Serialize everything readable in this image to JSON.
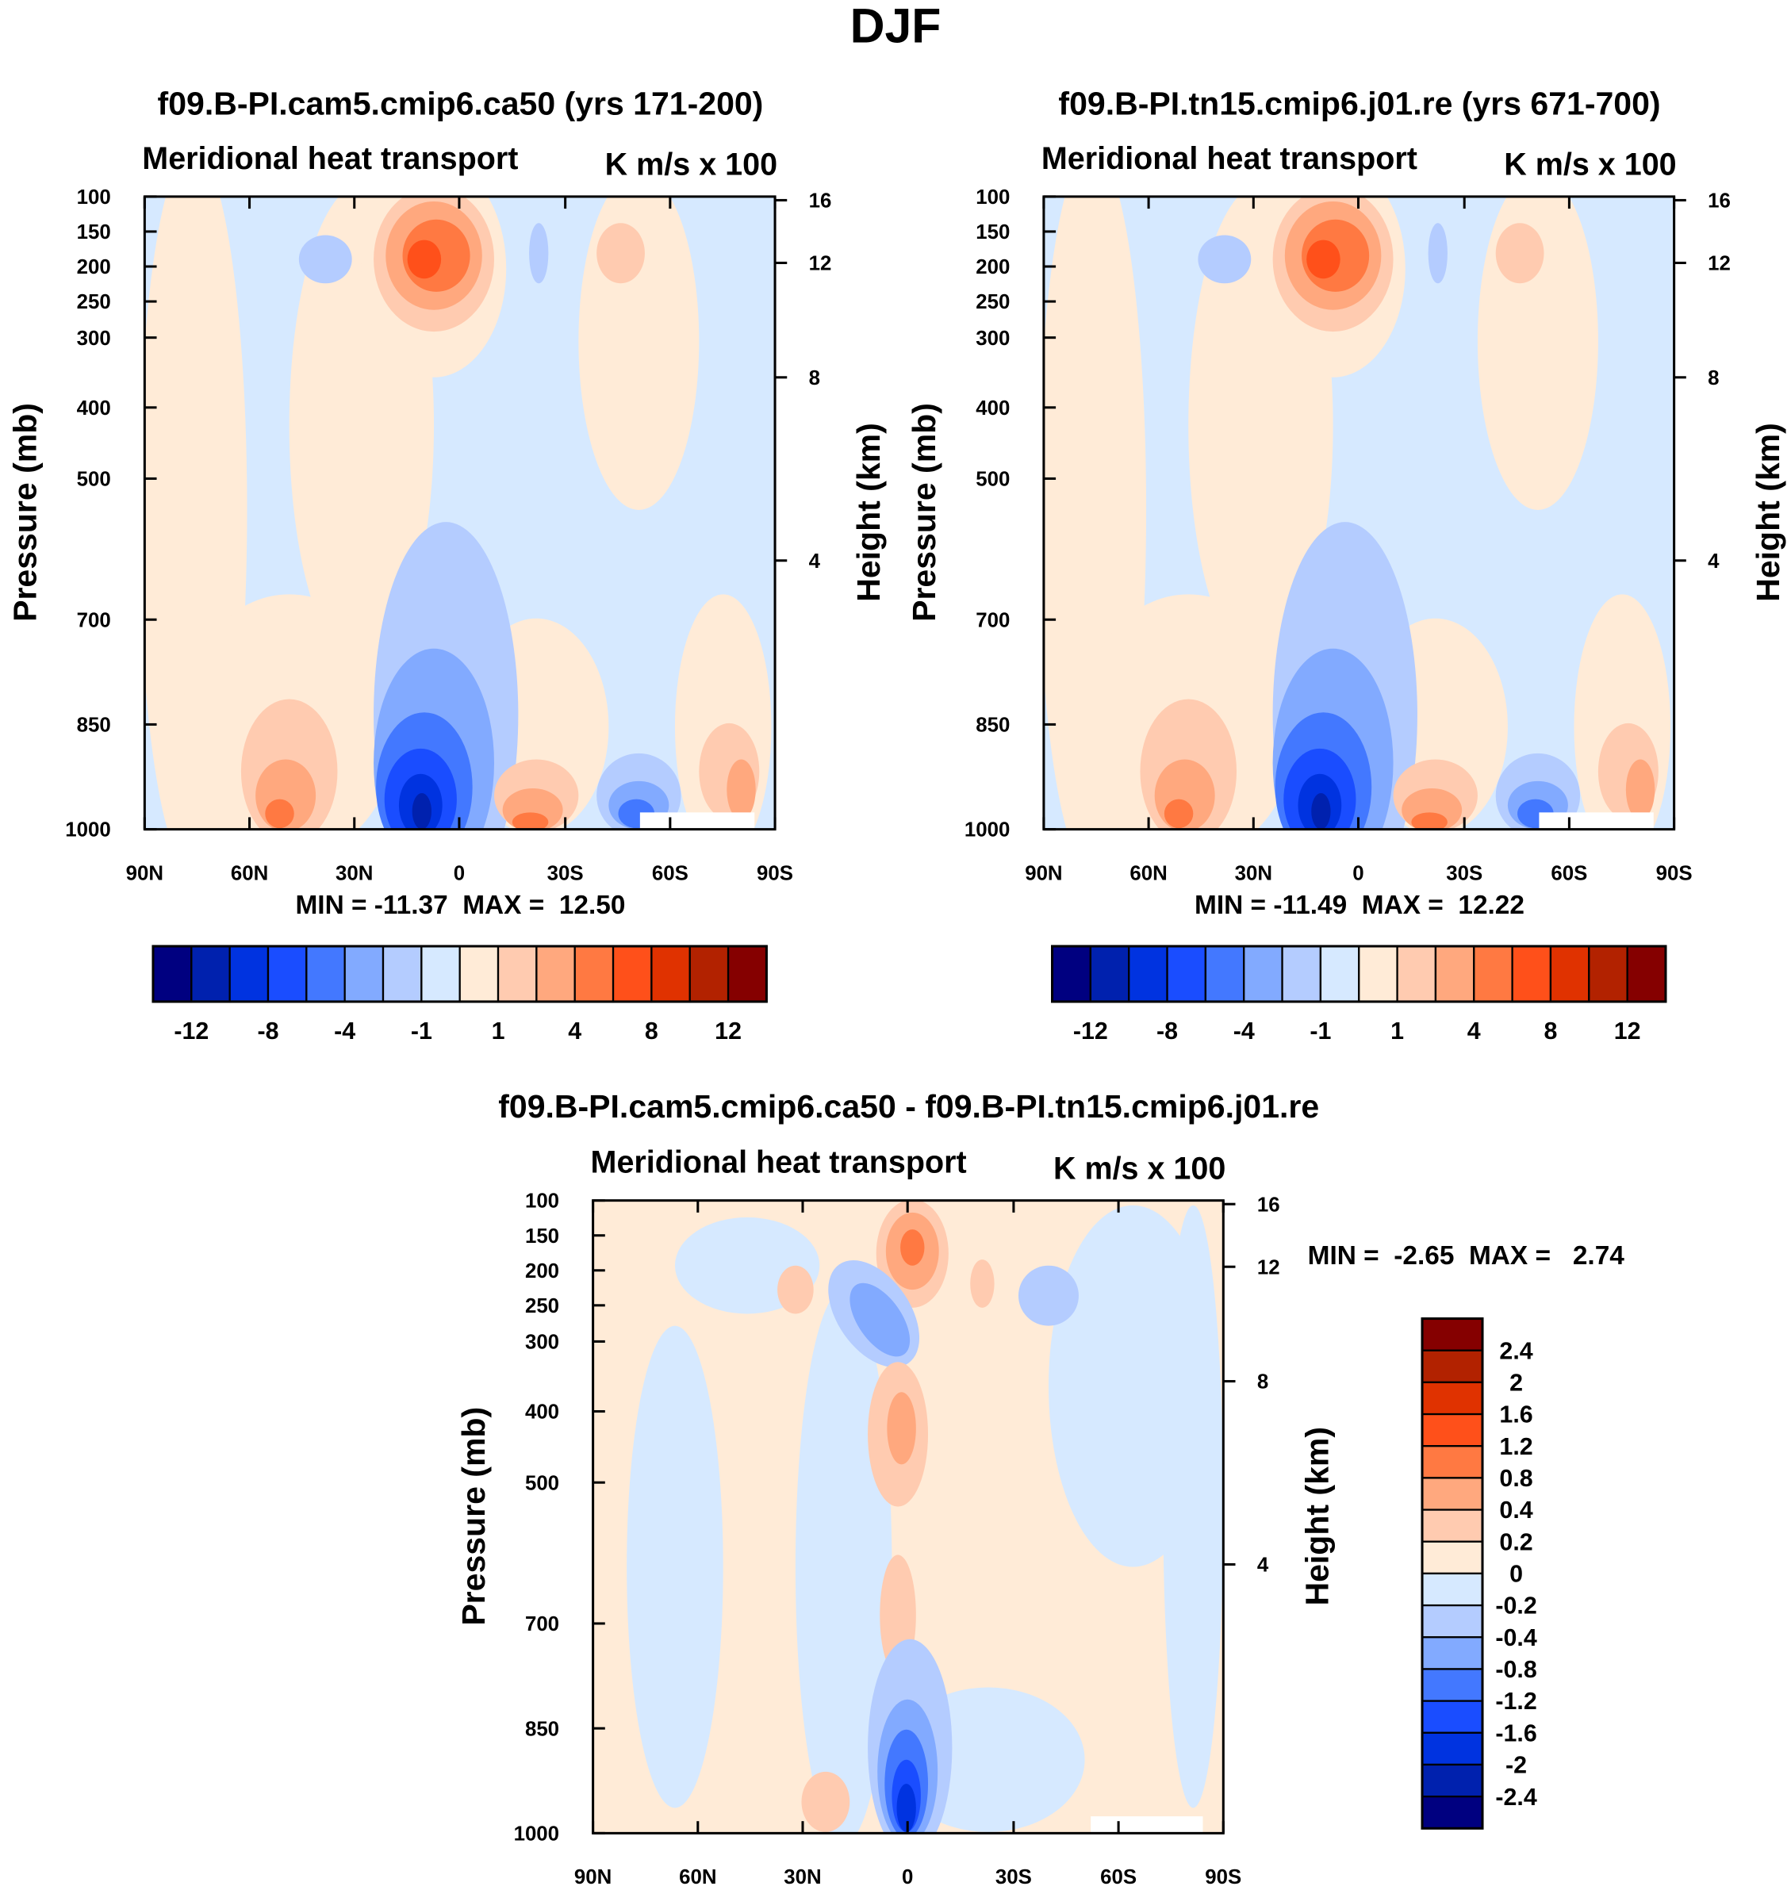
{
  "page_title": "DJF",
  "colors": {
    "levels": [
      "#000080",
      "#0021ae",
      "#0033e0",
      "#1a4dff",
      "#4378ff",
      "#82aaff",
      "#b4ccff",
      "#d6e9ff",
      "#ffebd7",
      "#ffcbb0",
      "#ffa87e",
      "#ff7942",
      "#ff501a",
      "#e03200",
      "#b22200",
      "#850000"
    ]
  },
  "chart_data": [
    {
      "type": "heatmap",
      "title": "f09.B-PI.cam5.cmip6.ca50 (yrs 171-200)",
      "left_string": "Meridional heat transport",
      "right_string": "K m/s x 100",
      "xlabel": "",
      "ylabel": "Pressure (mb)",
      "ylabel_right": "Height (km)",
      "x_ticks": [
        "90N",
        "60N",
        "30N",
        "0",
        "30S",
        "60S",
        "90S"
      ],
      "y_ticks": [
        "100",
        "150",
        "200",
        "250",
        "300",
        "400",
        "500",
        "700",
        "850",
        "1000"
      ],
      "y_right_ticks": [
        "16",
        "12",
        "8",
        "4"
      ],
      "min_max": "MIN = -11.37  MAX =  12.50",
      "min": -11.37,
      "max": 12.5,
      "colorbar_labels": [
        "-12",
        "-8",
        "-4",
        "-1",
        "1",
        "4",
        "8",
        "12"
      ]
    },
    {
      "type": "heatmap",
      "title": "f09.B-PI.tn15.cmip6.j01.re (yrs 671-700)",
      "left_string": "Meridional heat transport",
      "right_string": "K m/s x 100",
      "xlabel": "",
      "ylabel": "Pressure (mb)",
      "ylabel_right": "Height (km)",
      "x_ticks": [
        "90N",
        "60N",
        "30N",
        "0",
        "30S",
        "60S",
        "90S"
      ],
      "y_ticks": [
        "100",
        "150",
        "200",
        "250",
        "300",
        "400",
        "500",
        "700",
        "850",
        "1000"
      ],
      "y_right_ticks": [
        "16",
        "12",
        "8",
        "4"
      ],
      "min_max": "MIN = -11.49  MAX =  12.22",
      "min": -11.49,
      "max": 12.22,
      "colorbar_labels": [
        "-12",
        "-8",
        "-4",
        "-1",
        "1",
        "4",
        "8",
        "12"
      ]
    },
    {
      "type": "heatmap",
      "title": "f09.B-PI.cam5.cmip6.ca50 - f09.B-PI.tn15.cmip6.j01.re",
      "left_string": "Meridional heat transport",
      "right_string": "K m/s x 100",
      "xlabel": "",
      "ylabel": "Pressure (mb)",
      "ylabel_right": "Height (km)",
      "x_ticks": [
        "90N",
        "60N",
        "30N",
        "0",
        "30S",
        "60S",
        "90S"
      ],
      "y_ticks": [
        "100",
        "150",
        "200",
        "250",
        "300",
        "400",
        "500",
        "700",
        "850",
        "1000"
      ],
      "y_right_ticks": [
        "16",
        "12",
        "8",
        "4"
      ],
      "min_max": "MIN =  -2.65  MAX =   2.74",
      "min": -2.65,
      "max": 2.74,
      "colorbar_labels": [
        "2.4",
        "2",
        "1.6",
        "1.2",
        "0.8",
        "0.4",
        "0.2",
        "0",
        "-0.2",
        "-0.4",
        "-0.8",
        "-1.2",
        "-1.6",
        "-2",
        "-2.4"
      ]
    }
  ]
}
